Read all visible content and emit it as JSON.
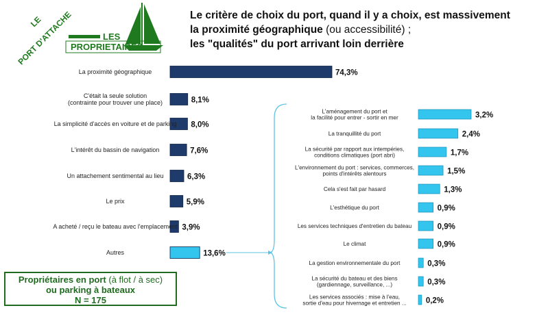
{
  "logo": {
    "line1": "LE",
    "line2": "PORT D'ATTACHE",
    "line3": "LES",
    "line4": "PROPRIETAIRES"
  },
  "title": {
    "line1": "Le critère de choix du port, quand il y a choix, est massivement",
    "line2a": "la proximité géographique",
    "line2b": " (ou accessibilité) ;",
    "line3": "les \"qualités\" du port arrivant loin derrière"
  },
  "note": {
    "part1": "Propriétaires en port",
    "part2": " (à flot / à sec)",
    "part3": "ou parking à bateaux",
    "part4": "N = 175"
  },
  "colors": {
    "main_bar": "#1f3b6b",
    "detail_bar": "#33c5ee",
    "brace": "#5bc4e6",
    "logo_green": "#1f7a1f"
  },
  "chart_data": [
    {
      "type": "bar",
      "orientation": "horizontal",
      "categories": [
        [
          "La proximité géographique"
        ],
        [
          "C'était la seule solution",
          "(contrainte pour trouver une place)"
        ],
        [
          "La simplicité d'accès en voiture et de parking"
        ],
        [
          "L'intérêt du bassin de navigation"
        ],
        [
          "Un attachement sentimental au lieu"
        ],
        [
          "Le prix"
        ],
        [
          "A acheté / reçu le bateau avec l'emplacement"
        ],
        [
          "Autres"
        ]
      ],
      "values": [
        74.3,
        8.1,
        8.0,
        7.6,
        6.3,
        5.9,
        3.9,
        13.6
      ],
      "labels": [
        "74,3%",
        "8,1%",
        "8,0%",
        "7,6%",
        "6,3%",
        "5,9%",
        "3,9%",
        "13,6%"
      ],
      "highlight_last": true
    },
    {
      "type": "bar",
      "orientation": "horizontal",
      "categories": [
        [
          "L'aménagement du port et",
          "la facilité pour entrer - sortir en mer"
        ],
        [
          "La tranquillité du port"
        ],
        [
          "La sécurité par rapport aux intempéries,",
          "conditions climatiques (port abri)"
        ],
        [
          "L'environnement du port : services, commerces,",
          "points d'intérêts alentours"
        ],
        [
          "Cela s'est fait par hasard"
        ],
        [
          "L'esthétique du port"
        ],
        [
          "Les services techniques d'entretien du bateau"
        ],
        [
          "Le climat"
        ],
        [
          "La gestion environnementale du port"
        ],
        [
          "La sécurité du bateau et des biens",
          "(gardiennage, surveillance, ...)"
        ],
        [
          "Les services associés : mise à l'eau,",
          "sortie d'eau pour hivernage et entretien ..."
        ]
      ],
      "values": [
        3.2,
        2.4,
        1.7,
        1.5,
        1.3,
        0.9,
        0.9,
        0.9,
        0.3,
        0.3,
        0.2
      ],
      "labels": [
        "3,2%",
        "2,4%",
        "1,7%",
        "1,5%",
        "1,3%",
        "0,9%",
        "0,9%",
        "0,9%",
        "0,3%",
        "0,3%",
        "0,2%"
      ]
    }
  ]
}
